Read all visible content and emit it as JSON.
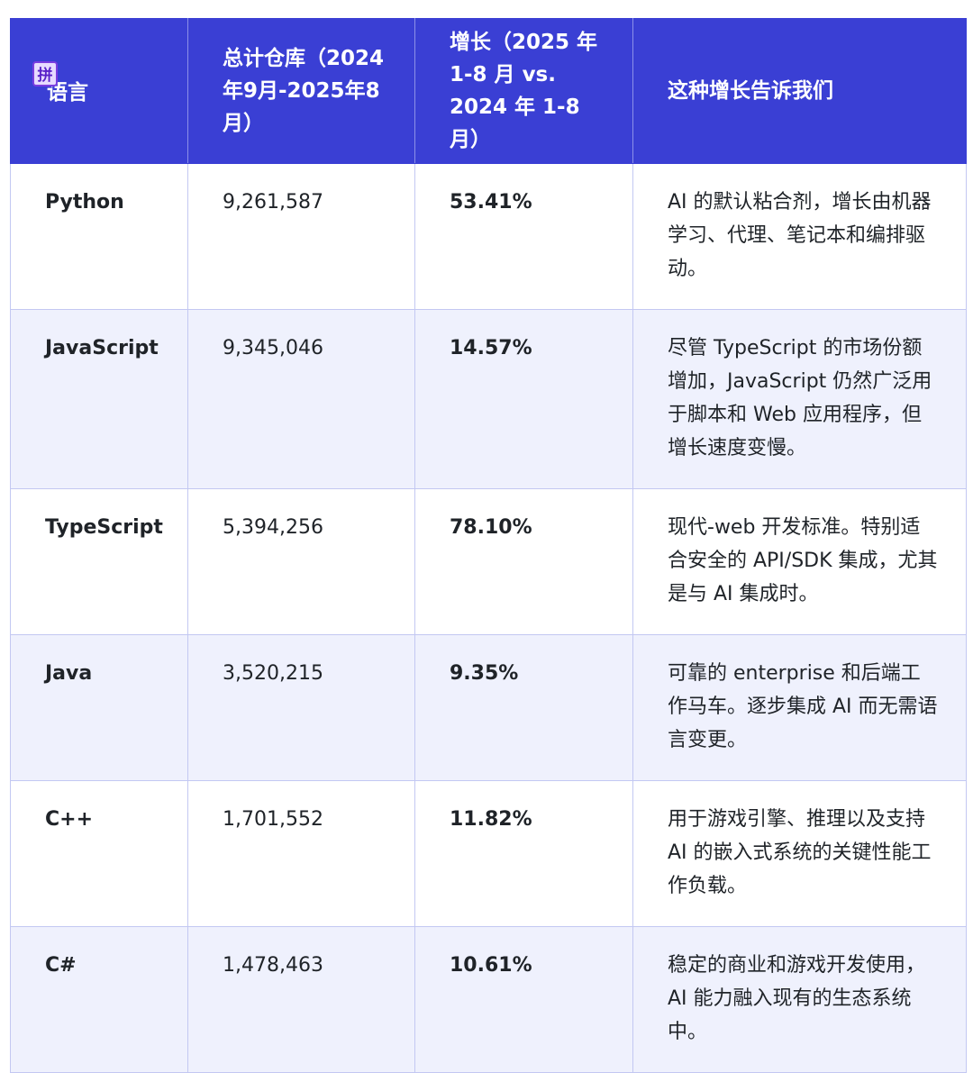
{
  "table": {
    "headers": [
      "语言",
      "总计仓库（2024年9月-2025年8月）",
      "增长（2025 年 1-8 月 vs. 2024 年 1-8 月）",
      "这种增长告诉我们"
    ],
    "rows": [
      {
        "language": "Python",
        "total": "9,261,587",
        "growth": "53.41%",
        "insight": "AI 的默认粘合剂，增长由机器学习、代理、笔记本和编排驱动。"
      },
      {
        "language": "JavaScript",
        "total": "9,345,046",
        "growth": "14.57%",
        "insight": "尽管 TypeScript 的市场份额增加，JavaScript 仍然广泛用于脚本和 Web 应用程序，但增长速度变慢。"
      },
      {
        "language": "TypeScript",
        "total": "5,394,256",
        "growth": "78.10%",
        "insight": "现代-web 开发标准。特别适合安全的 API/SDK 集成，尤其是与 AI 集成时。"
      },
      {
        "language": "Java",
        "total": "3,520,215",
        "growth": "9.35%",
        "insight": "可靠的 enterprise 和后端工作马车。逐步集成 AI 而无需语言变更。"
      },
      {
        "language": "C++",
        "total": "1,701,552",
        "growth": "11.82%",
        "insight": "用于游戏引擎、推理以及支持 AI 的嵌入式系统的关键性能工作负载。"
      },
      {
        "language": "C#",
        "total": "1,478,463",
        "growth": "10.61%",
        "insight": "稳定的商业和游戏开发使用，AI 能力融入现有的生态系统中。"
      }
    ]
  },
  "ime_badge": {
    "label": "拼"
  }
}
